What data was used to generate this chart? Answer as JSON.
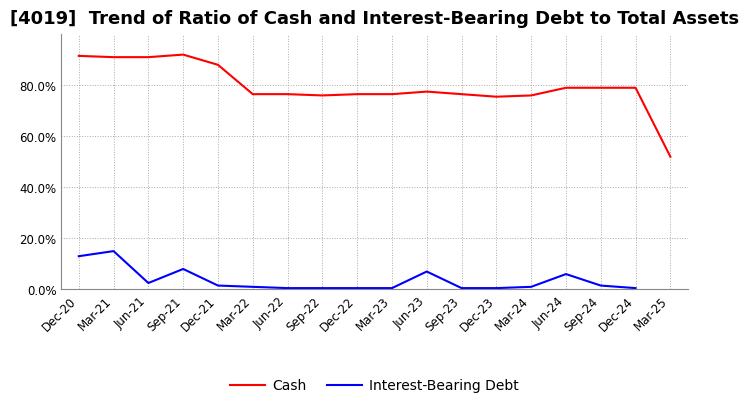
{
  "title": "[4019]  Trend of Ratio of Cash and Interest-Bearing Debt to Total Assets",
  "x_labels": [
    "Dec-20",
    "Mar-21",
    "Jun-21",
    "Sep-21",
    "Dec-21",
    "Mar-22",
    "Jun-22",
    "Sep-22",
    "Dec-22",
    "Mar-23",
    "Jun-23",
    "Sep-23",
    "Dec-23",
    "Mar-24",
    "Jun-24",
    "Sep-24",
    "Dec-24",
    "Mar-25"
  ],
  "cash": [
    91.5,
    91.0,
    91.0,
    92.0,
    88.0,
    76.5,
    76.5,
    76.0,
    76.5,
    76.5,
    77.5,
    76.5,
    75.5,
    76.0,
    79.0,
    79.0,
    79.0,
    52.0
  ],
  "interest_bearing_debt": [
    13.0,
    15.0,
    2.5,
    8.0,
    1.5,
    1.0,
    0.5,
    0.5,
    0.5,
    0.5,
    7.0,
    0.5,
    0.5,
    1.0,
    6.0,
    1.5,
    0.5,
    null
  ],
  "cash_color": "#FF0000",
  "debt_color": "#0000FF",
  "background_color": "#FFFFFF",
  "grid_color": "#AAAAAA",
  "ylim": [
    0,
    100
  ],
  "yticks": [
    0.0,
    20.0,
    40.0,
    60.0,
    80.0
  ],
  "legend_cash": "Cash",
  "legend_debt": "Interest-Bearing Debt",
  "title_fontsize": 13,
  "axis_fontsize": 8.5,
  "legend_fontsize": 10
}
